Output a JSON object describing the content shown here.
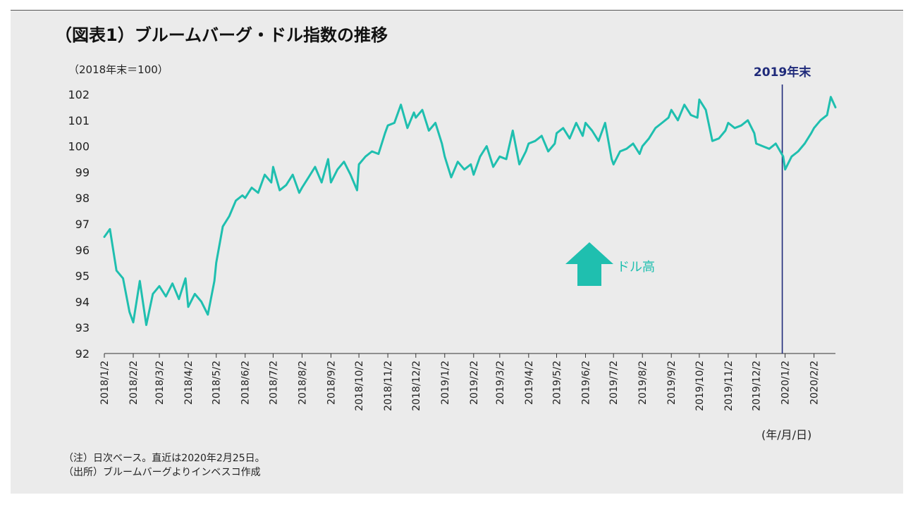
{
  "chart_data": {
    "type": "line",
    "title": "（図表1）ブルームバーグ・ドル指数の推移",
    "ylabel": "（2018年末＝100）",
    "xlabel_unit": "(年/月/日)",
    "ylim": [
      92,
      102
    ],
    "yticks": [
      "92",
      "93",
      "94",
      "95",
      "96",
      "97",
      "98",
      "99",
      "100",
      "101",
      "102"
    ],
    "xticks": [
      "2018/1/2",
      "2018/2/2",
      "2018/3/2",
      "2018/4/2",
      "2018/5/2",
      "2018/6/2",
      "2018/7/2",
      "2018/8/2",
      "2018/9/2",
      "2018/10/2",
      "2018/11/2",
      "2018/12/2",
      "2019/1/2",
      "2019/2/2",
      "2019/3/2",
      "2019/4/2",
      "2019/5/2",
      "2019/6/2",
      "2019/7/2",
      "2019/8/2",
      "2019/9/2",
      "2019/10/2",
      "2019/11/2",
      "2019/12/2",
      "2020/1/2",
      "2020/2/2"
    ],
    "series": [
      {
        "color": "#1fbfaf",
        "x": [
          "2018/1/2",
          "2018/1/8",
          "2018/1/15",
          "2018/1/22",
          "2018/1/29",
          "2018/2/2",
          "2018/2/9",
          "2018/2/16",
          "2018/2/23",
          "2018/3/2",
          "2018/3/9",
          "2018/3/16",
          "2018/3/23",
          "2018/3/30",
          "2018/4/2",
          "2018/4/9",
          "2018/4/16",
          "2018/4/23",
          "2018/4/30",
          "2018/5/2",
          "2018/5/9",
          "2018/5/16",
          "2018/5/23",
          "2018/5/30",
          "2018/6/2",
          "2018/6/9",
          "2018/6/16",
          "2018/6/23",
          "2018/6/30",
          "2018/7/2",
          "2018/7/9",
          "2018/7/16",
          "2018/7/23",
          "2018/7/30",
          "2018/8/2",
          "2018/8/9",
          "2018/8/16",
          "2018/8/23",
          "2018/8/30",
          "2018/9/2",
          "2018/9/9",
          "2018/9/16",
          "2018/9/23",
          "2018/9/30",
          "2018/10/2",
          "2018/10/9",
          "2018/10/16",
          "2018/10/23",
          "2018/10/30",
          "2018/11/2",
          "2018/11/9",
          "2018/11/16",
          "2018/11/23",
          "2018/11/30",
          "2018/12/2",
          "2018/12/9",
          "2018/12/16",
          "2018/12/23",
          "2018/12/30",
          "2019/1/2",
          "2019/1/9",
          "2019/1/16",
          "2019/1/23",
          "2019/1/30",
          "2019/2/2",
          "2019/2/9",
          "2019/2/16",
          "2019/2/23",
          "2019/3/2",
          "2019/3/9",
          "2019/3/16",
          "2019/3/23",
          "2019/3/30",
          "2019/4/2",
          "2019/4/9",
          "2019/4/16",
          "2019/4/23",
          "2019/4/30",
          "2019/5/2",
          "2019/5/9",
          "2019/5/16",
          "2019/5/23",
          "2019/5/30",
          "2019/6/2",
          "2019/6/9",
          "2019/6/16",
          "2019/6/23",
          "2019/6/30",
          "2019/7/2",
          "2019/7/9",
          "2019/7/16",
          "2019/7/23",
          "2019/7/30",
          "2019/8/2",
          "2019/8/9",
          "2019/8/16",
          "2019/8/23",
          "2019/8/30",
          "2019/9/2",
          "2019/9/9",
          "2019/9/16",
          "2019/9/23",
          "2019/9/30",
          "2019/10/2",
          "2019/10/9",
          "2019/10/16",
          "2019/10/23",
          "2019/10/30",
          "2019/11/2",
          "2019/11/9",
          "2019/11/16",
          "2019/11/23",
          "2019/11/30",
          "2019/12/2",
          "2019/12/9",
          "2019/12/16",
          "2019/12/23",
          "2019/12/31",
          "2020/1/2",
          "2020/1/9",
          "2020/1/16",
          "2020/1/23",
          "2020/1/30",
          "2020/2/2",
          "2020/2/9",
          "2020/2/16",
          "2020/2/20",
          "2020/2/25"
        ],
        "values": [
          96.5,
          96.8,
          95.2,
          94.9,
          93.6,
          93.2,
          94.8,
          93.1,
          94.3,
          94.6,
          94.2,
          94.7,
          94.1,
          94.9,
          93.8,
          94.3,
          94.0,
          93.5,
          94.8,
          95.5,
          96.9,
          97.3,
          97.9,
          98.1,
          98.0,
          98.4,
          98.2,
          98.9,
          98.6,
          99.2,
          98.3,
          98.5,
          98.9,
          98.2,
          98.4,
          98.8,
          99.2,
          98.6,
          99.5,
          98.6,
          99.1,
          99.4,
          98.9,
          98.3,
          99.3,
          99.6,
          99.8,
          99.7,
          100.5,
          100.8,
          100.9,
          101.6,
          100.7,
          101.3,
          101.1,
          101.4,
          100.6,
          100.9,
          100.1,
          99.6,
          98.8,
          99.4,
          99.1,
          99.3,
          98.9,
          99.6,
          100.0,
          99.2,
          99.6,
          99.5,
          100.6,
          99.3,
          99.8,
          100.1,
          100.2,
          100.4,
          99.8,
          100.1,
          100.5,
          100.7,
          100.3,
          100.9,
          100.4,
          100.9,
          100.6,
          100.2,
          100.9,
          99.5,
          99.3,
          99.8,
          99.9,
          100.1,
          99.7,
          100.0,
          100.3,
          100.7,
          100.9,
          101.1,
          101.4,
          101.0,
          101.6,
          101.2,
          101.1,
          101.8,
          101.4,
          100.2,
          100.3,
          100.6,
          100.9,
          100.7,
          100.8,
          101.0,
          100.5,
          100.1,
          100.0,
          99.9,
          100.1,
          99.6,
          99.1,
          99.6,
          99.8,
          100.1,
          100.5,
          100.7,
          101.0,
          101.2,
          101.9,
          101.5
        ]
      }
    ],
    "marker": {
      "x": "2020/1/2",
      "label": "2019年末",
      "color": "#1f2a7a"
    },
    "annotation": {
      "label": "ドル高",
      "color": "#1fbfaf"
    }
  },
  "notes": {
    "note1": "（注）日次ベース。直近は2020年2月25日。",
    "note2": "（出所）ブルームバーグよりインベスコ作成"
  }
}
